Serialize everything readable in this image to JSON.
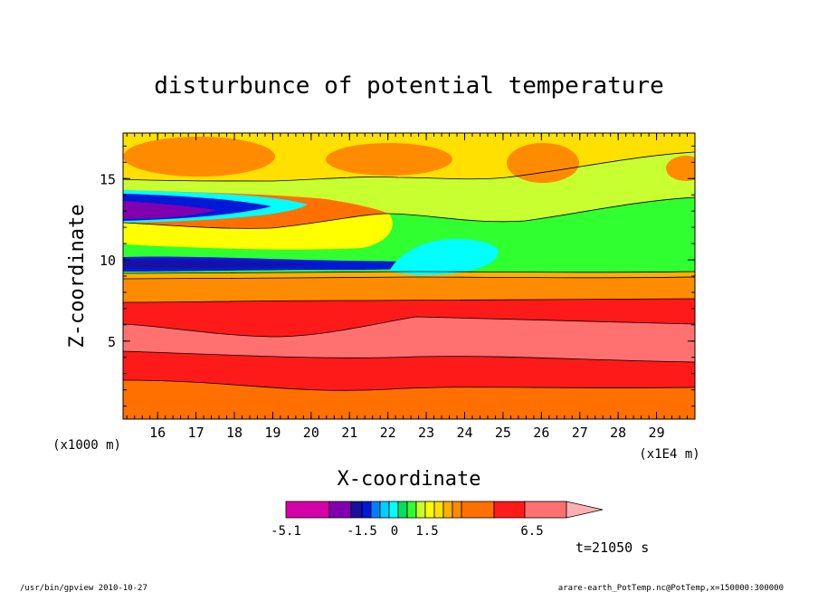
{
  "chart_data": {
    "type": "heatmap",
    "title": "disturbunce of potential temperature",
    "xlabel": "X-coordinate",
    "ylabel": "Z-coordinate",
    "x_unit_label": "(x1E4 m)",
    "y_unit_label": "(x1000 m)",
    "xlim": [
      15.1,
      30.0
    ],
    "ylim": [
      0.2,
      17.8
    ],
    "x_ticks": [
      "16",
      "17",
      "18",
      "19",
      "20",
      "21",
      "22",
      "23",
      "24",
      "25",
      "26",
      "27",
      "28",
      "29"
    ],
    "y_ticks": [
      "5",
      "10",
      "15"
    ],
    "colorbar": {
      "tick_labels": [
        "-5.1",
        "-1.5",
        "0",
        "1.5",
        "6.5"
      ],
      "levels": [
        -5.1,
        -3.9,
        -2.7,
        -2.1,
        -1.5,
        -1.2,
        -0.9,
        -0.6,
        -0.3,
        0,
        0.3,
        0.6,
        0.9,
        1.2,
        1.5,
        2.7,
        3.9,
        5.1,
        6.5
      ],
      "colors": [
        "#d400a8",
        "#8000b0",
        "#1a10a0",
        "#0018d8",
        "#0080ff",
        "#00d0ff",
        "#00ffff",
        "#00e060",
        "#30ff30",
        "#c8ff30",
        "#ffff00",
        "#ffe000",
        "#ffb000",
        "#ff8c00",
        "#ff7000",
        "#ff1a1a",
        "#ff7070",
        "#ffb0b0"
      ]
    },
    "bands_z_approx": [
      {
        "z": [
          0.2,
          2.3
        ],
        "value_color": "#ff7000"
      },
      {
        "z": [
          2.3,
          4.0
        ],
        "value_color": "#ff1a1a"
      },
      {
        "z": [
          4.0,
          6.0
        ],
        "value_color": "#ff7070"
      },
      {
        "z": [
          6.0,
          7.5
        ],
        "value_color": "#ff1a1a"
      },
      {
        "z": [
          7.5,
          9.2
        ],
        "value_color": "#ff7000"
      },
      {
        "z": [
          9.3,
          10.6
        ],
        "value_color": "#0018d8"
      },
      {
        "z": [
          12.3,
          13.8
        ],
        "value_color": "#8000b0"
      },
      {
        "z": [
          15.0,
          17.0
        ],
        "value_color": "#ff7000"
      }
    ]
  },
  "annotations": {
    "time_label": "t=21050 s",
    "footer_left": "/usr/bin/gpview  2010-10-27",
    "footer_right": "arare-earth_PotTemp.nc@PotTemp,x=150000:300000"
  }
}
